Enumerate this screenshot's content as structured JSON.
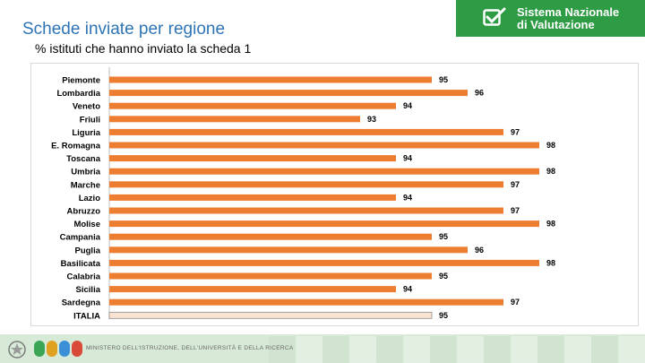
{
  "header": {
    "title": "Schede inviate per regione",
    "subtitle": "% istituti che hanno inviato la scheda 1"
  },
  "logo": {
    "line1": "Sistema Nazionale",
    "line2": "di Valutazione",
    "icon": "check-box-icon"
  },
  "footer": {
    "ministry_text": "MINISTERO DELL'ISTRUZIONE, DELL'UNIVERSITÀ E DELLA RICERCA",
    "emblem_icon": "italian-republic-emblem-icon",
    "miur_logo": "m i u r"
  },
  "colors": {
    "accent": "#ed7d31",
    "highlight_fill": "#fbe3d4",
    "title_blue": "#2e74b5",
    "logo_green": "#2e9b45"
  },
  "chart_data": {
    "type": "bar",
    "orientation": "horizontal",
    "title": "",
    "xlabel": "",
    "ylabel": "",
    "xlim": [
      86,
      99
    ],
    "categories": [
      "Piemonte",
      "Lombardia",
      "Veneto",
      "Friuli",
      "Liguria",
      "E. Romagna",
      "Toscana",
      "Umbria",
      "Marche",
      "Lazio",
      "Abruzzo",
      "Molise",
      "Campania",
      "Puglia",
      "Basilicata",
      "Calabria",
      "Sicilia",
      "Sardegna",
      "ITALIA"
    ],
    "values": [
      95,
      96,
      94,
      93,
      97,
      98,
      94,
      98,
      97,
      94,
      97,
      98,
      95,
      96,
      98,
      95,
      94,
      97,
      95
    ],
    "highlighted_category": "ITALIA"
  }
}
